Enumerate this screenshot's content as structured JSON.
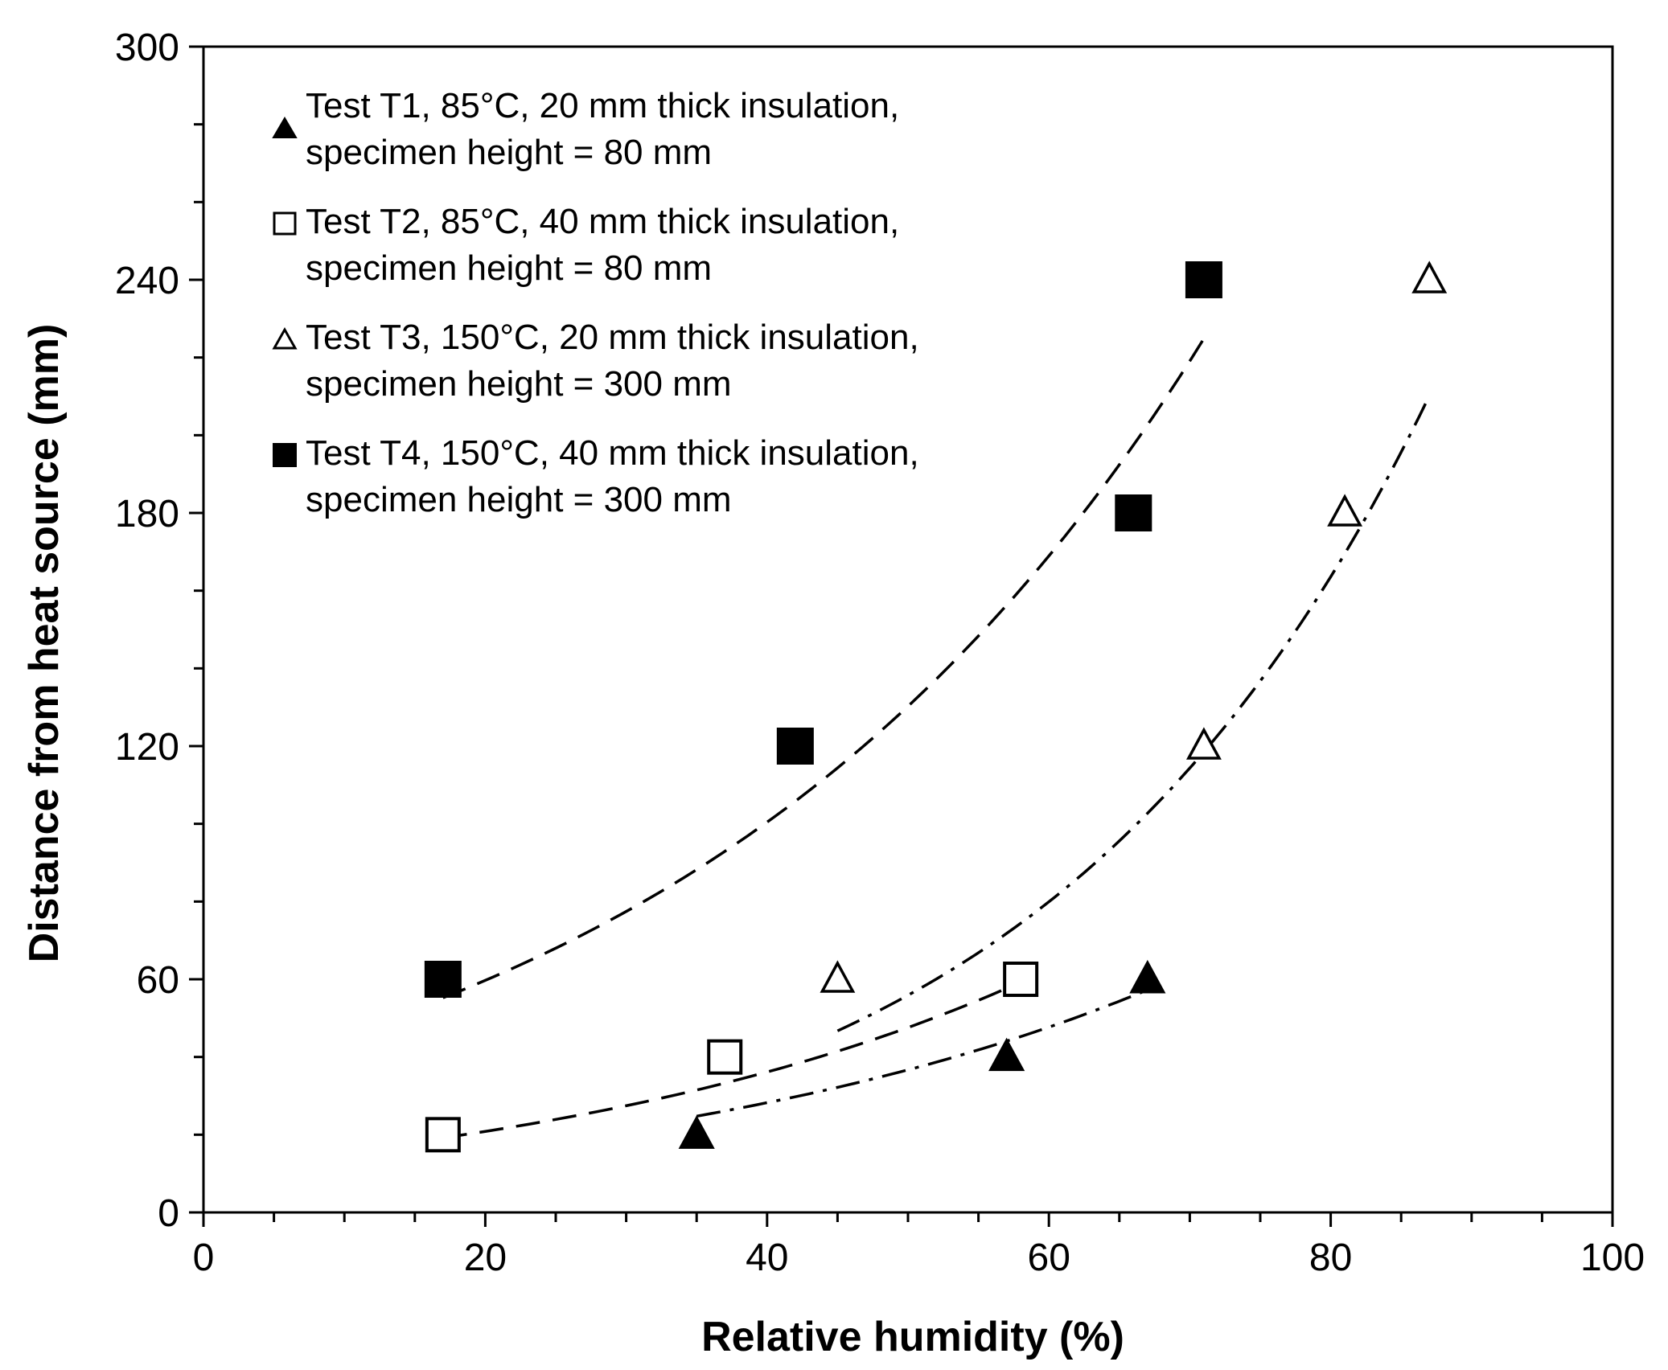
{
  "chart_data": {
    "type": "scatter",
    "title": "",
    "xlabel": "Relative humidity (%)",
    "ylabel": "Distance from heat source (mm)",
    "xlim": [
      0,
      100
    ],
    "ylim": [
      0,
      300
    ],
    "x_major_ticks": [
      0,
      20,
      40,
      60,
      80,
      100
    ],
    "y_major_ticks": [
      0,
      60,
      120,
      180,
      240,
      300
    ],
    "x_minor_step": 5,
    "y_minor_step": 20,
    "x_tick_labels": [
      "0",
      "20",
      "40",
      "60",
      "80",
      "100"
    ],
    "y_tick_labels": [
      "0",
      "60",
      "120",
      "180",
      "240",
      "300"
    ],
    "grid": false,
    "legend_position": "top-left",
    "series": [
      {
        "name": "T1",
        "legend_line1": "Test T1, 85°C, 20 mm thick insulation,",
        "legend_line2": "specimen height = 80 mm",
        "marker": "triangle",
        "filled": true,
        "trend_style": "dashdot",
        "x": [
          35,
          57,
          67
        ],
        "y": [
          20,
          40,
          60
        ],
        "trend": {
          "a": 9.9,
          "b": 0.0262,
          "x_range": [
            35,
            67
          ]
        }
      },
      {
        "name": "T2",
        "legend_line1": "Test T2, 85°C, 40 mm thick insulation,",
        "legend_line2": "specimen height = 80 mm",
        "marker": "square",
        "filled": false,
        "trend_style": "dashed",
        "x": [
          17,
          37,
          58
        ],
        "y": [
          20,
          40,
          60
        ],
        "trend": {
          "a": 12.03,
          "b": 0.0275,
          "x_range": [
            17,
            58
          ]
        }
      },
      {
        "name": "T3",
        "legend_line1": "Test T3, 150°C, 20 mm thick insulation,",
        "legend_line2": "specimen height = 300 mm",
        "marker": "triangle",
        "filled": false,
        "trend_style": "dashdot",
        "x": [
          45,
          71,
          81,
          87
        ],
        "y": [
          60,
          120,
          180,
          240
        ],
        "trend": {
          "a": 9.33,
          "b": 0.0358,
          "x_range": [
            45,
            87
          ]
        }
      },
      {
        "name": "T4",
        "legend_line1": "Test T4, 150°C, 40 mm thick insulation,",
        "legend_line2": "specimen height = 300 mm",
        "marker": "square",
        "filled": true,
        "trend_style": "dashed",
        "x": [
          17,
          42,
          66,
          71
        ],
        "y": [
          60,
          120,
          180,
          240
        ],
        "trend": {
          "a": 35.5,
          "b": 0.026,
          "x_range": [
            17,
            71
          ]
        }
      }
    ]
  }
}
